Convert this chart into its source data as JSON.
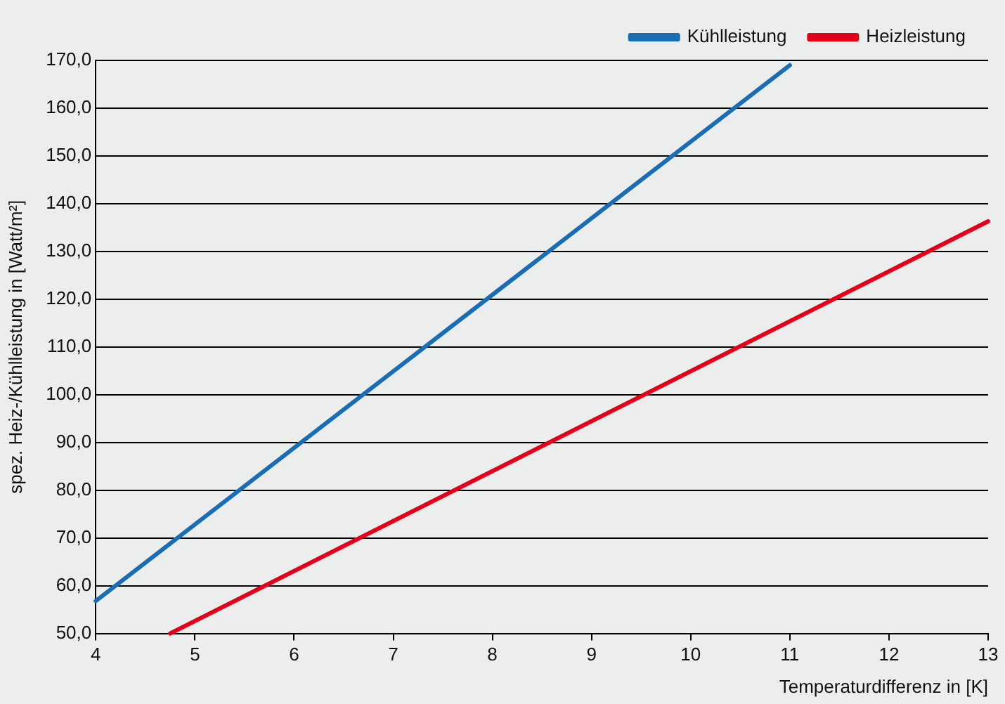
{
  "chart_data": {
    "type": "line",
    "xlabel": "Temperaturdifferenz in [K]",
    "ylabel": "spez. Heiz-/Kühlleistung in [Watt/m²]",
    "xlim": [
      4,
      13
    ],
    "xticks": [
      4,
      5,
      6,
      7,
      8,
      9,
      10,
      11,
      12,
      13
    ],
    "ylim": [
      50,
      170
    ],
    "yticks": [
      {
        "value": 50,
        "label": "50,0"
      },
      {
        "value": 60,
        "label": "60,0"
      },
      {
        "value": 70,
        "label": "70,0"
      },
      {
        "value": 80,
        "label": "80,0"
      },
      {
        "value": 90,
        "label": "90,0"
      },
      {
        "value": 100,
        "label": "100,0"
      },
      {
        "value": 110,
        "label": "110,0"
      },
      {
        "value": 120,
        "label": "120,0"
      },
      {
        "value": 130,
        "label": "130,0"
      },
      {
        "value": 140,
        "label": "140,0"
      },
      {
        "value": 150,
        "label": "150,0"
      },
      {
        "value": 160,
        "label": "160,0"
      },
      {
        "value": 170,
        "label": "170,0"
      }
    ],
    "grid": "y",
    "legend": "top right",
    "marker": "none",
    "line_style": "solid",
    "series": [
      {
        "name": "Kühlleistung",
        "color": "#1a6db5",
        "x": [
          4,
          11
        ],
        "values": [
          56.8,
          169
        ]
      },
      {
        "name": "Heizleistung",
        "color": "#e3001b",
        "x": [
          4.75,
          13
        ],
        "values": [
          50,
          136.3
        ]
      }
    ]
  }
}
